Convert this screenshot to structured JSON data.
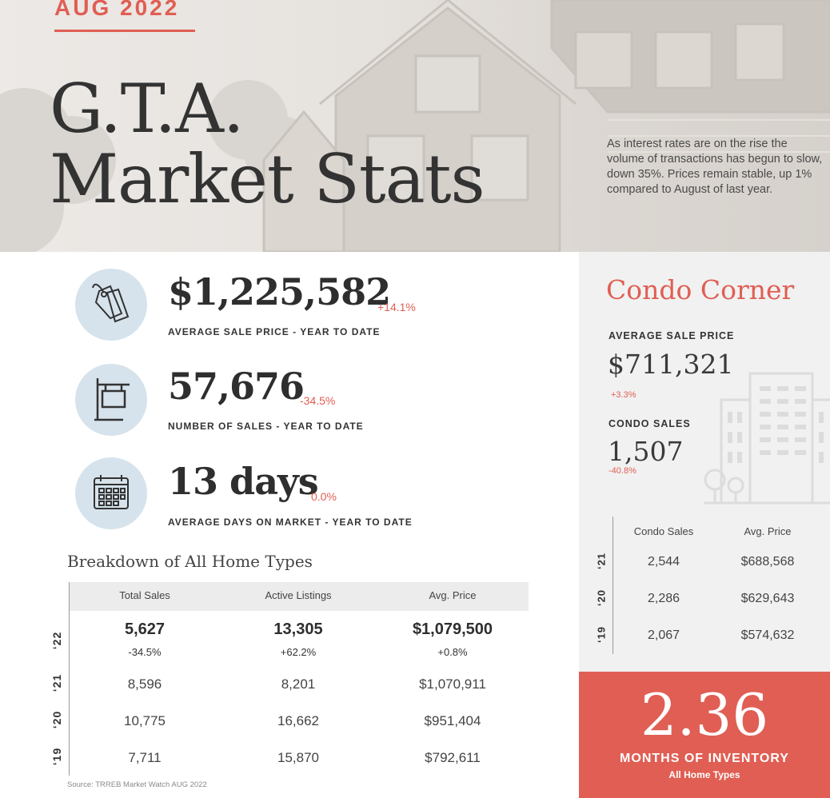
{
  "hero": {
    "date": "AUG 2022",
    "title_line1": "G.T.A.",
    "title_line2": "Market Stats",
    "blurb": "As interest rates are on the rise the volume of transactions has begun to slow, down 35%.  Prices remain stable, up 1% compared to August of last year."
  },
  "stats": [
    {
      "icon": "price-tag-icon",
      "value": "$1,225,582",
      "change": "+14.1%",
      "label": "AVERAGE SALE PRICE - YEAR TO DATE"
    },
    {
      "icon": "for-sale-sign-icon",
      "value": "57,676",
      "change": "-34.5%",
      "label": "NUMBER OF SALES - YEAR TO DATE"
    },
    {
      "icon": "calendar-icon",
      "value": "13 days",
      "change": "0.0%",
      "label": "AVERAGE DAYS ON MARKET - YEAR TO DATE"
    }
  ],
  "breakdown": {
    "title": "Breakdown of All Home Types",
    "columns": [
      "Total Sales",
      "Active Listings",
      "Avg. Price"
    ],
    "rows": [
      {
        "year": "‘22",
        "values": [
          "5,627",
          "13,305",
          "$1,079,500"
        ],
        "changes": [
          "-34.5%",
          "+62.2%",
          "+0.8%"
        ]
      },
      {
        "year": "‘21",
        "values": [
          "8,596",
          "8,201",
          "$1,070,911"
        ]
      },
      {
        "year": "‘20",
        "values": [
          "10,775",
          "16,662",
          "$951,404"
        ]
      },
      {
        "year": "‘19",
        "values": [
          "7,711",
          "15,870",
          "$792,611"
        ]
      }
    ],
    "source": "Source: TRREB Market Watch AUG 2022"
  },
  "condo": {
    "title": "Condo Corner",
    "avg_price_label": "AVERAGE SALE PRICE",
    "avg_price": "$711,321",
    "avg_price_change": "+3.3%",
    "sales_label": "CONDO SALES",
    "sales": "1,507",
    "sales_change": "-40.8%",
    "columns": [
      "Condo Sales",
      "Avg. Price"
    ],
    "rows": [
      {
        "year": "‘21",
        "values": [
          "2,544",
          "$688,568"
        ]
      },
      {
        "year": "‘20",
        "values": [
          "2,286",
          "$629,643"
        ]
      },
      {
        "year": "‘19",
        "values": [
          "2,067",
          "$574,632"
        ]
      }
    ]
  },
  "inventory": {
    "value": "2.36",
    "label": "MONTHS OF INVENTORY",
    "sub": "All Home Types"
  },
  "colors": {
    "accent": "#e05e53",
    "icon_circle": "#d6e3ec",
    "panel": "#f1f1f1"
  }
}
